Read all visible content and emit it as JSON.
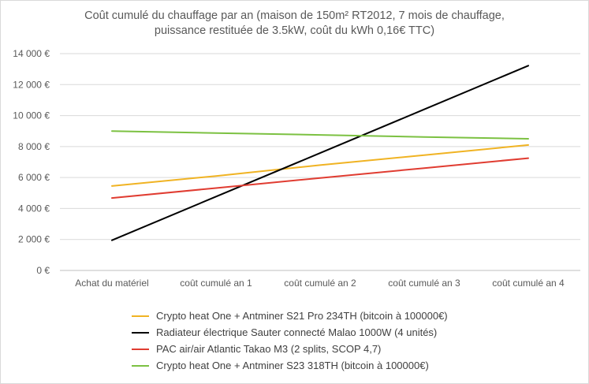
{
  "chart_data": {
    "type": "line",
    "title_lines": [
      "Coût cumulé du chauffage par an (maison de 150m² RT2012, 7 mois de chauffage,",
      "puissance restituée de 3.5kW, coût du kWh 0,16€ TTC)"
    ],
    "categories": [
      "Achat du matériel",
      "coût cumulé an 1",
      "coût cumulé an 2",
      "coût cumulé an 3",
      "coût cumulé an 4"
    ],
    "ylim": [
      0,
      14000
    ],
    "yticks": [
      0,
      2000,
      4000,
      6000,
      8000,
      10000,
      12000,
      14000
    ],
    "ytick_labels": [
      "0 €",
      "2 000 €",
      "4 000 €",
      "6 000 €",
      "8 000 €",
      "10 000 €",
      "12 000 €",
      "14 000 €"
    ],
    "grid": true,
    "legend_position": "bottom",
    "series": [
      {
        "name": "Crypto heat One  + Antminer S21 Pro 234TH (bitcoin à 100000€)",
        "color": "#f0b323",
        "values": [
          5450,
          6100,
          6800,
          7450,
          8100
        ]
      },
      {
        "name": "Radiateur électrique Sauter connecté Malao 1000W (4 unités)",
        "color": "#000000",
        "values": [
          1950,
          4770,
          7580,
          10400,
          13220
        ]
      },
      {
        "name": "PAC air/air Atlantic Takao M3 (2 splits, SCOP 4,7)",
        "color": "#e03c31",
        "values": [
          4680,
          5320,
          5970,
          6610,
          7250
        ]
      },
      {
        "name": "Crypto heat One + Antminer S23 318TH (bitcoin à 100000€)",
        "color": "#7cc142",
        "values": [
          9000,
          8870,
          8750,
          8620,
          8500
        ]
      }
    ]
  }
}
